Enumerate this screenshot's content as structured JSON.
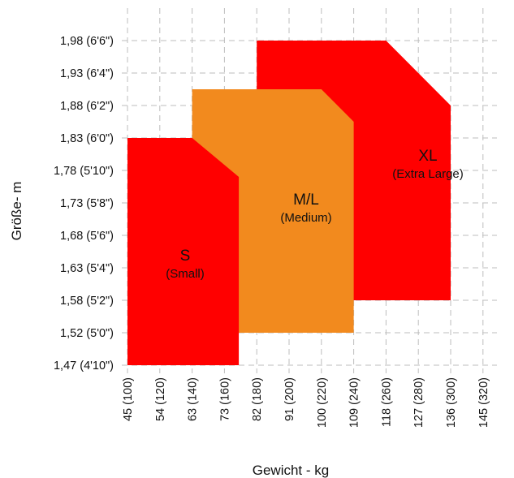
{
  "chart_data": {
    "type": "area",
    "xlabel": "Gewicht - kg",
    "ylabel": "Größe- m",
    "grid": true,
    "x_ticks": [
      "45 (100)",
      "54 (120)",
      "63 (140)",
      "73 (160)",
      "82 (180)",
      "91 (200)",
      "100 (220)",
      "109 (240)",
      "118 (260)",
      "127 (280)",
      "136 (300)",
      "145 (320)"
    ],
    "y_ticks": [
      "1,47 (4'10\")",
      "1,52 (5'0\")",
      "1,58 (5'2\")",
      "1,63 (5'4\")",
      "1,68 (5'6\")",
      "1,73 (5'8\")",
      "1,78 (5'10\")",
      "1,83 (6'0\")",
      "1,88 (6'2\")",
      "1,93 (6'4\")",
      "1,98 (6'6\")"
    ],
    "regions": [
      {
        "label": "XL",
        "sublabel": "(Extra Large)",
        "color": "#ff0000",
        "points": [
          [
            82,
            1.58
          ],
          [
            82,
            1.98
          ],
          [
            118,
            1.98
          ],
          [
            136,
            1.88
          ],
          [
            136,
            1.58
          ]
        ]
      },
      {
        "label": "M/L",
        "sublabel": "(Medium)",
        "color": "#f28a1e",
        "points": [
          [
            63,
            1.52
          ],
          [
            63,
            1.905
          ],
          [
            100,
            1.905
          ],
          [
            109,
            1.855
          ],
          [
            109,
            1.52
          ]
        ]
      },
      {
        "label": "S",
        "sublabel": "(Small)",
        "color": "#ff0000",
        "points": [
          [
            45,
            1.47
          ],
          [
            45,
            1.83
          ],
          [
            63,
            1.83
          ],
          [
            77,
            1.77
          ],
          [
            77,
            1.47
          ]
        ]
      }
    ]
  }
}
